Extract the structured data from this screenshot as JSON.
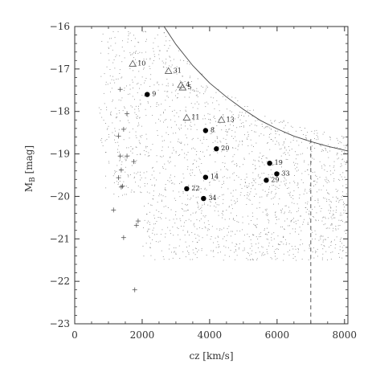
{
  "chart_data": {
    "type": "scatter",
    "xlabel": "cz [km/s]",
    "ylabel": "M_B [mag]",
    "ylabel_main": "M",
    "ylabel_sub": "B",
    "ylabel_unit": " [mag]",
    "xlim": [
      0,
      8100
    ],
    "ylim": [
      -23,
      -16
    ],
    "y_inverted": true,
    "xticks": [
      0,
      2000,
      4000,
      6000,
      8000
    ],
    "xtick_labels": [
      "0",
      "2000",
      "4000",
      "6000",
      "8000"
    ],
    "yticks": [
      -16,
      -17,
      -18,
      -19,
      -20,
      -21,
      -22,
      -23
    ],
    "ytick_labels": [
      "−16",
      "−17",
      "−18",
      "−19",
      "−20",
      "−21",
      "−22",
      "−23"
    ],
    "grid": false,
    "limit_curve": {
      "style": "solid",
      "points": [
        [
          2650,
          -16
        ],
        [
          3000,
          -16.42
        ],
        [
          3500,
          -16.92
        ],
        [
          4000,
          -17.33
        ],
        [
          4500,
          -17.66
        ],
        [
          5000,
          -17.95
        ],
        [
          5500,
          -18.21
        ],
        [
          6000,
          -18.41
        ],
        [
          6500,
          -18.58
        ],
        [
          7000,
          -18.71
        ],
        [
          7500,
          -18.82
        ],
        [
          8100,
          -18.93
        ]
      ]
    },
    "vertical_line": {
      "x": 7000,
      "y_from": -23,
      "y_to": -18.65,
      "style": "dashed"
    },
    "series": [
      {
        "marker": "filled-circle",
        "points": [
          {
            "x": 2150,
            "y": -17.6,
            "label": "9"
          },
          {
            "x": 3880,
            "y": -18.45,
            "label": "8"
          },
          {
            "x": 4200,
            "y": -18.88,
            "label": "20"
          },
          {
            "x": 5780,
            "y": -19.22,
            "label": "19"
          },
          {
            "x": 5990,
            "y": -19.47,
            "label": "33"
          },
          {
            "x": 5680,
            "y": -19.62,
            "label": "29"
          },
          {
            "x": 3880,
            "y": -19.55,
            "label": "14"
          },
          {
            "x": 3320,
            "y": -19.82,
            "label": "22"
          },
          {
            "x": 3820,
            "y": -20.05,
            "label": "34"
          }
        ]
      },
      {
        "marker": "open-triangle",
        "points": [
          {
            "x": 1720,
            "y": -16.88,
            "label": "10"
          },
          {
            "x": 2780,
            "y": -17.05,
            "label": "31"
          },
          {
            "x": 3150,
            "y": -17.38,
            "label": "4"
          },
          {
            "x": 3200,
            "y": -17.44,
            "label": "5"
          },
          {
            "x": 3320,
            "y": -18.15,
            "label": "11"
          },
          {
            "x": 4350,
            "y": -18.2,
            "label": "13"
          }
        ]
      },
      {
        "marker": "plus",
        "points": [
          {
            "x": 1350,
            "y": -17.48
          },
          {
            "x": 1550,
            "y": -18.05
          },
          {
            "x": 1450,
            "y": -18.42
          },
          {
            "x": 1300,
            "y": -18.58
          },
          {
            "x": 1750,
            "y": -19.18
          },
          {
            "x": 1350,
            "y": -19.05
          },
          {
            "x": 1550,
            "y": -19.05
          },
          {
            "x": 1380,
            "y": -19.38
          },
          {
            "x": 1300,
            "y": -19.56
          },
          {
            "x": 1420,
            "y": -19.76
          },
          {
            "x": 1380,
            "y": -19.78
          },
          {
            "x": 1150,
            "y": -20.32
          },
          {
            "x": 1880,
            "y": -20.58
          },
          {
            "x": 1830,
            "y": -20.68
          },
          {
            "x": 1450,
            "y": -20.97
          },
          {
            "x": 1780,
            "y": -22.2
          }
        ]
      }
    ],
    "background_points_description_free": true
  }
}
